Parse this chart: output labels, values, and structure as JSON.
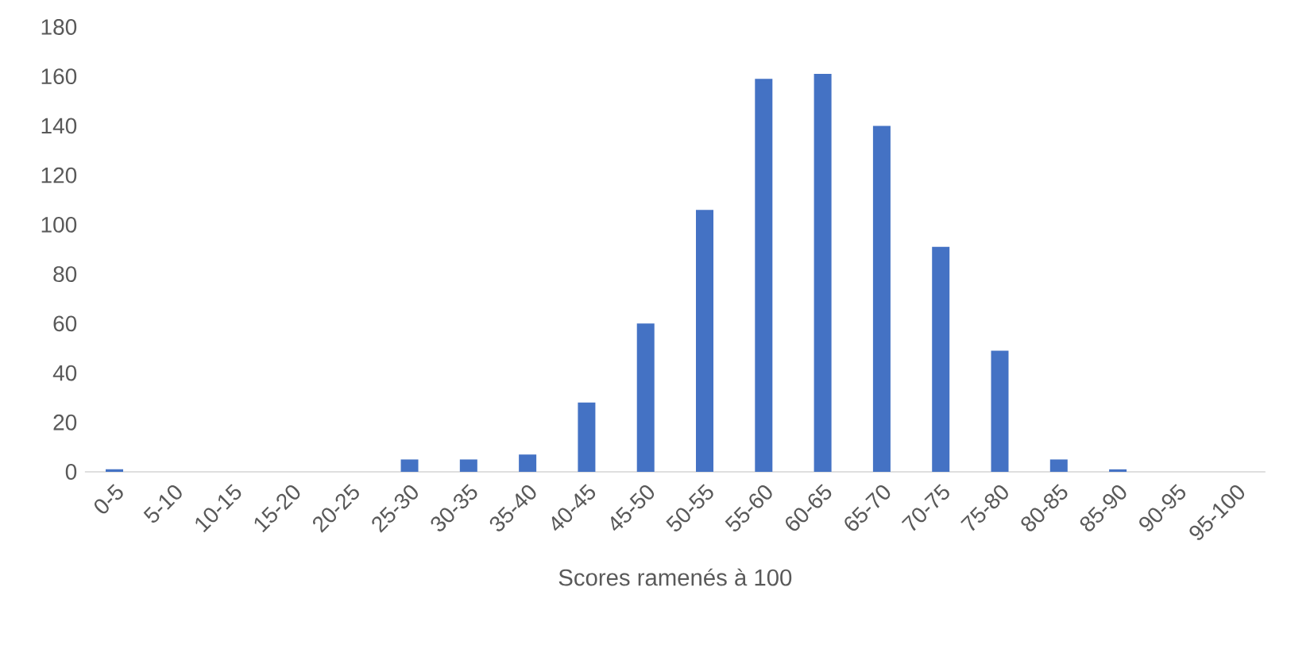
{
  "chart_data": {
    "type": "bar",
    "xlabel": "Scores ramenés à 100",
    "categories": [
      "0-5",
      "5-10",
      "10-15",
      "15-20",
      "20-25",
      "25-30",
      "30-35",
      "35-40",
      "40-45",
      "45-50",
      "50-55",
      "55-60",
      "60-65",
      "65-70",
      "70-75",
      "75-80",
      "80-85",
      "85-90",
      "90-95",
      "95-100"
    ],
    "values": [
      1,
      0,
      0,
      0,
      0,
      5,
      5,
      7,
      28,
      60,
      106,
      159,
      161,
      140,
      91,
      49,
      5,
      1,
      0,
      0
    ],
    "color": "#4472c4",
    "ylim": [
      0,
      180
    ],
    "yticks": [
      0,
      20,
      40,
      60,
      80,
      100,
      120,
      140,
      160,
      180
    ]
  }
}
